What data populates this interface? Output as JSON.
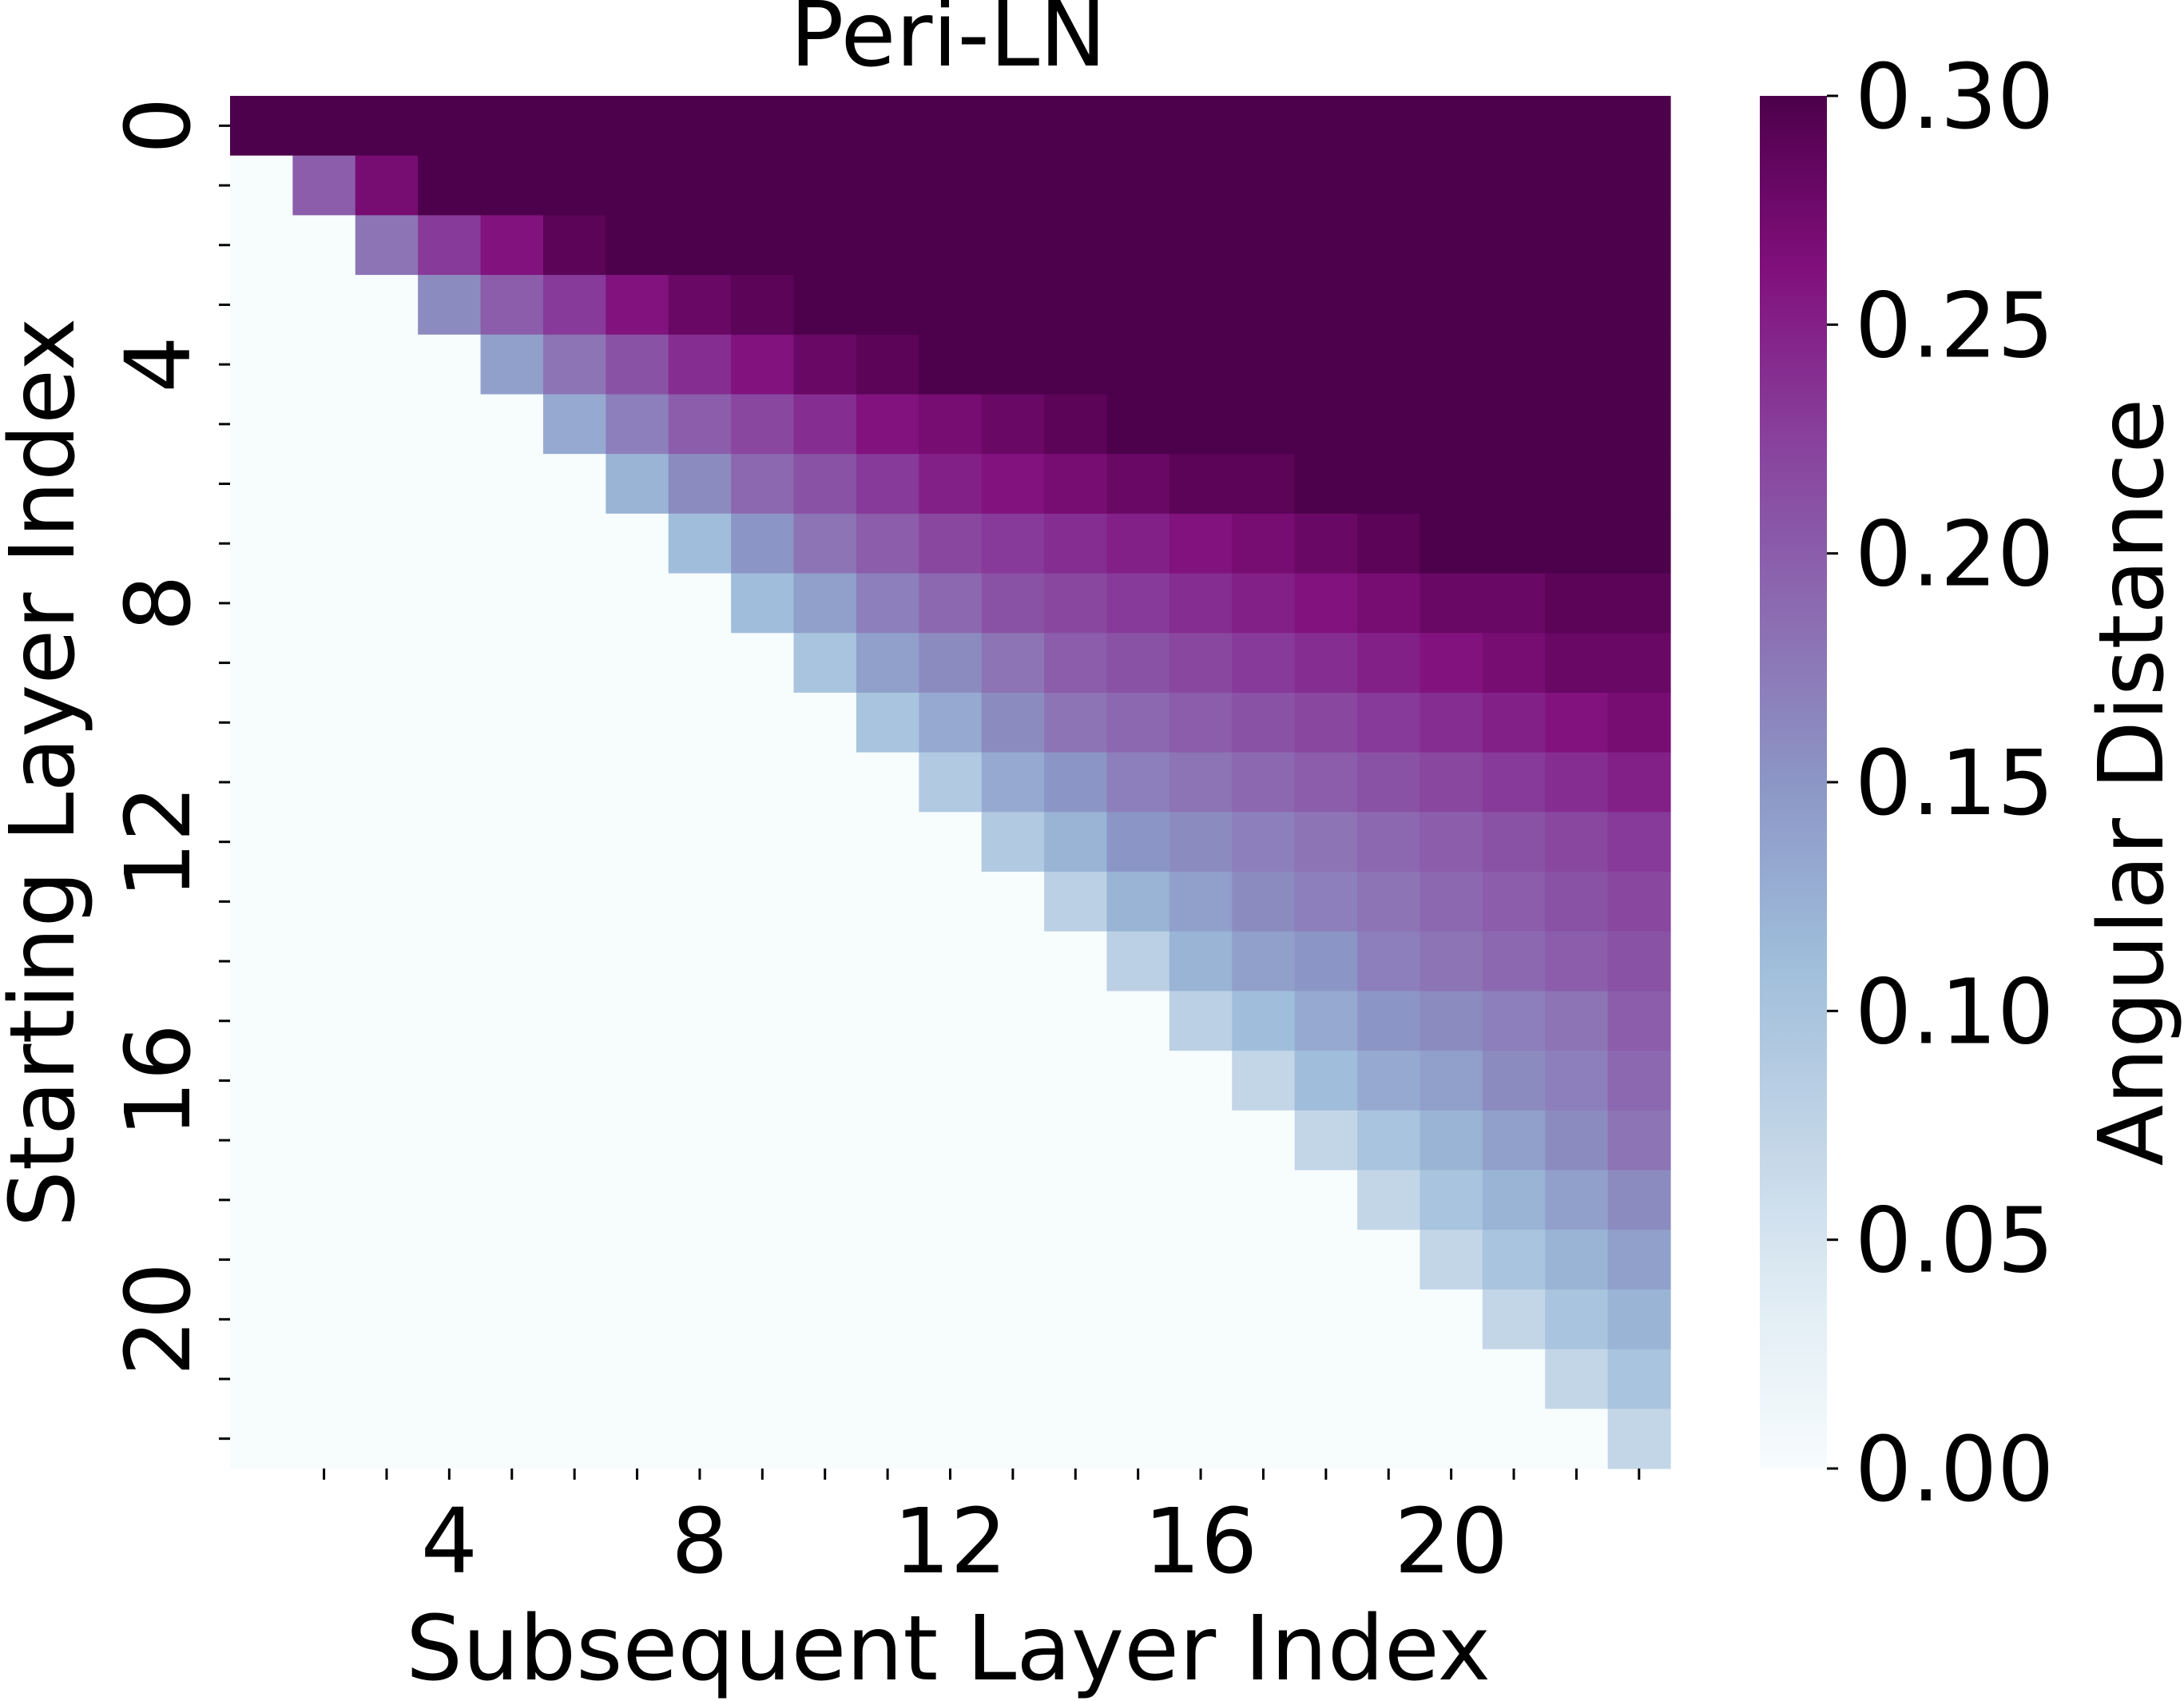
{
  "chart_data": {
    "type": "heatmap",
    "title": "Peri-LN",
    "xlabel": "Subsequent Layer Index",
    "ylabel": "Starting Layer Index",
    "x_tick_labels": [
      "4",
      "8",
      "12",
      "16",
      "20"
    ],
    "x_tick_values": [
      4,
      8,
      12,
      16,
      20
    ],
    "y_tick_labels": [
      "0",
      "4",
      "8",
      "12",
      "16",
      "20"
    ],
    "y_tick_values": [
      0,
      4,
      8,
      12,
      16,
      20
    ],
    "xlim": [
      0,
      23
    ],
    "ylim": [
      0,
      23
    ],
    "colorbar": {
      "label": "Angular Distance",
      "range": [
        0.0,
        0.3
      ],
      "tick_labels": [
        "0.00",
        "0.05",
        "0.10",
        "0.15",
        "0.20",
        "0.25",
        "0.30"
      ],
      "tick_values": [
        0.0,
        0.05,
        0.1,
        0.15,
        0.2,
        0.25,
        0.3
      ],
      "colormap": "BuPu"
    },
    "n_rows": 23,
    "n_cols": 23,
    "values": [
      [
        0.3,
        0.3,
        0.3,
        0.3,
        0.3,
        0.3,
        0.3,
        0.3,
        0.3,
        0.3,
        0.3,
        0.3,
        0.3,
        0.3,
        0.3,
        0.3,
        0.3,
        0.3,
        0.3,
        0.3,
        0.3,
        0.3,
        0.3
      ],
      [
        0.0,
        0.2,
        0.27,
        0.3,
        0.3,
        0.3,
        0.3,
        0.3,
        0.3,
        0.3,
        0.3,
        0.3,
        0.3,
        0.3,
        0.3,
        0.3,
        0.3,
        0.3,
        0.3,
        0.3,
        0.3,
        0.3,
        0.3
      ],
      [
        0.0,
        0.0,
        0.18,
        0.23,
        0.26,
        0.29,
        0.3,
        0.3,
        0.3,
        0.3,
        0.3,
        0.3,
        0.3,
        0.3,
        0.3,
        0.3,
        0.3,
        0.3,
        0.3,
        0.3,
        0.3,
        0.3,
        0.3
      ],
      [
        0.0,
        0.0,
        0.0,
        0.16,
        0.2,
        0.23,
        0.26,
        0.28,
        0.29,
        0.3,
        0.3,
        0.3,
        0.3,
        0.3,
        0.3,
        0.3,
        0.3,
        0.3,
        0.3,
        0.3,
        0.3,
        0.3,
        0.3
      ],
      [
        0.0,
        0.0,
        0.0,
        0.0,
        0.14,
        0.18,
        0.21,
        0.24,
        0.26,
        0.28,
        0.29,
        0.3,
        0.3,
        0.3,
        0.3,
        0.3,
        0.3,
        0.3,
        0.3,
        0.3,
        0.3,
        0.3,
        0.3
      ],
      [
        0.0,
        0.0,
        0.0,
        0.0,
        0.0,
        0.13,
        0.17,
        0.2,
        0.22,
        0.24,
        0.26,
        0.27,
        0.28,
        0.29,
        0.3,
        0.3,
        0.3,
        0.3,
        0.3,
        0.3,
        0.3,
        0.3,
        0.3
      ],
      [
        0.0,
        0.0,
        0.0,
        0.0,
        0.0,
        0.0,
        0.12,
        0.16,
        0.19,
        0.21,
        0.23,
        0.25,
        0.26,
        0.27,
        0.28,
        0.29,
        0.29,
        0.3,
        0.3,
        0.3,
        0.3,
        0.3,
        0.3
      ],
      [
        0.0,
        0.0,
        0.0,
        0.0,
        0.0,
        0.0,
        0.0,
        0.11,
        0.15,
        0.18,
        0.2,
        0.22,
        0.23,
        0.24,
        0.25,
        0.26,
        0.27,
        0.28,
        0.29,
        0.3,
        0.3,
        0.3,
        0.3
      ],
      [
        0.0,
        0.0,
        0.0,
        0.0,
        0.0,
        0.0,
        0.0,
        0.0,
        0.11,
        0.14,
        0.17,
        0.19,
        0.21,
        0.22,
        0.23,
        0.24,
        0.25,
        0.26,
        0.27,
        0.28,
        0.28,
        0.29,
        0.29
      ],
      [
        0.0,
        0.0,
        0.0,
        0.0,
        0.0,
        0.0,
        0.0,
        0.0,
        0.0,
        0.1,
        0.14,
        0.16,
        0.18,
        0.2,
        0.21,
        0.22,
        0.23,
        0.24,
        0.25,
        0.26,
        0.27,
        0.28,
        0.28
      ],
      [
        0.0,
        0.0,
        0.0,
        0.0,
        0.0,
        0.0,
        0.0,
        0.0,
        0.0,
        0.0,
        0.1,
        0.13,
        0.16,
        0.18,
        0.19,
        0.2,
        0.21,
        0.22,
        0.23,
        0.24,
        0.25,
        0.26,
        0.27
      ],
      [
        0.0,
        0.0,
        0.0,
        0.0,
        0.0,
        0.0,
        0.0,
        0.0,
        0.0,
        0.0,
        0.0,
        0.09,
        0.13,
        0.15,
        0.17,
        0.18,
        0.19,
        0.2,
        0.21,
        0.22,
        0.23,
        0.24,
        0.25
      ],
      [
        0.0,
        0.0,
        0.0,
        0.0,
        0.0,
        0.0,
        0.0,
        0.0,
        0.0,
        0.0,
        0.0,
        0.0,
        0.09,
        0.12,
        0.15,
        0.16,
        0.17,
        0.18,
        0.19,
        0.2,
        0.21,
        0.22,
        0.23
      ],
      [
        0.0,
        0.0,
        0.0,
        0.0,
        0.0,
        0.0,
        0.0,
        0.0,
        0.0,
        0.0,
        0.0,
        0.0,
        0.0,
        0.08,
        0.12,
        0.14,
        0.16,
        0.17,
        0.18,
        0.19,
        0.2,
        0.21,
        0.22
      ],
      [
        0.0,
        0.0,
        0.0,
        0.0,
        0.0,
        0.0,
        0.0,
        0.0,
        0.0,
        0.0,
        0.0,
        0.0,
        0.0,
        0.0,
        0.08,
        0.12,
        0.14,
        0.15,
        0.17,
        0.18,
        0.19,
        0.2,
        0.21
      ],
      [
        0.0,
        0.0,
        0.0,
        0.0,
        0.0,
        0.0,
        0.0,
        0.0,
        0.0,
        0.0,
        0.0,
        0.0,
        0.0,
        0.0,
        0.0,
        0.08,
        0.11,
        0.13,
        0.15,
        0.16,
        0.17,
        0.18,
        0.2
      ],
      [
        0.0,
        0.0,
        0.0,
        0.0,
        0.0,
        0.0,
        0.0,
        0.0,
        0.0,
        0.0,
        0.0,
        0.0,
        0.0,
        0.0,
        0.0,
        0.0,
        0.07,
        0.11,
        0.13,
        0.14,
        0.16,
        0.17,
        0.19
      ],
      [
        0.0,
        0.0,
        0.0,
        0.0,
        0.0,
        0.0,
        0.0,
        0.0,
        0.0,
        0.0,
        0.0,
        0.0,
        0.0,
        0.0,
        0.0,
        0.0,
        0.0,
        0.07,
        0.1,
        0.12,
        0.14,
        0.16,
        0.18
      ],
      [
        0.0,
        0.0,
        0.0,
        0.0,
        0.0,
        0.0,
        0.0,
        0.0,
        0.0,
        0.0,
        0.0,
        0.0,
        0.0,
        0.0,
        0.0,
        0.0,
        0.0,
        0.0,
        0.07,
        0.1,
        0.12,
        0.14,
        0.16
      ],
      [
        0.0,
        0.0,
        0.0,
        0.0,
        0.0,
        0.0,
        0.0,
        0.0,
        0.0,
        0.0,
        0.0,
        0.0,
        0.0,
        0.0,
        0.0,
        0.0,
        0.0,
        0.0,
        0.0,
        0.07,
        0.1,
        0.12,
        0.14
      ],
      [
        0.0,
        0.0,
        0.0,
        0.0,
        0.0,
        0.0,
        0.0,
        0.0,
        0.0,
        0.0,
        0.0,
        0.0,
        0.0,
        0.0,
        0.0,
        0.0,
        0.0,
        0.0,
        0.0,
        0.0,
        0.07,
        0.1,
        0.12
      ],
      [
        0.0,
        0.0,
        0.0,
        0.0,
        0.0,
        0.0,
        0.0,
        0.0,
        0.0,
        0.0,
        0.0,
        0.0,
        0.0,
        0.0,
        0.0,
        0.0,
        0.0,
        0.0,
        0.0,
        0.0,
        0.0,
        0.07,
        0.1
      ],
      [
        0.0,
        0.0,
        0.0,
        0.0,
        0.0,
        0.0,
        0.0,
        0.0,
        0.0,
        0.0,
        0.0,
        0.0,
        0.0,
        0.0,
        0.0,
        0.0,
        0.0,
        0.0,
        0.0,
        0.0,
        0.0,
        0.0,
        0.07
      ]
    ]
  }
}
